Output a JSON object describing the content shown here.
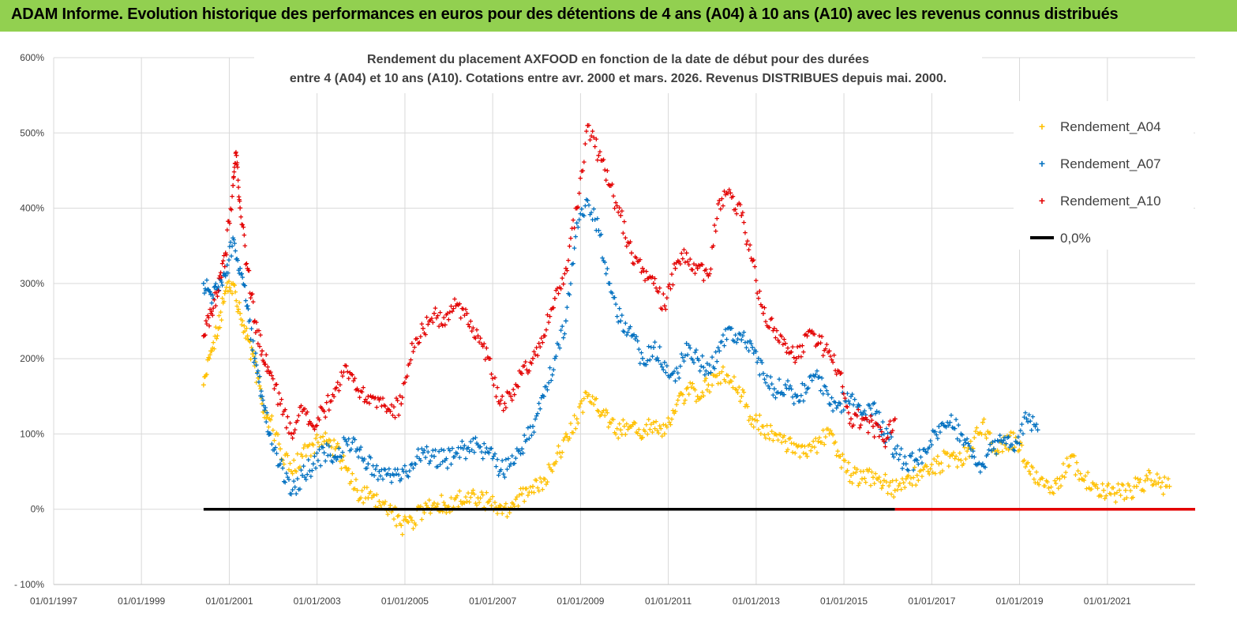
{
  "banner": {
    "text": "ADAM Informe. Evolution historique des performances en euros pour des détentions de 4 ans (A04) à 10 ans (A10) avec les revenus connus distribués",
    "background": "#92d050"
  },
  "chart_data": {
    "type": "scatter",
    "title_lines": [
      "Rendement du placement AXFOOD en fonction de la date de début pour des durées",
      "entre 4 (A04) et 10 ans (A10). Cotations entre avr. 2000 et mars. 2026. Revenus DISTRIBUES depuis mai. 2000."
    ],
    "xlabel": "",
    "ylabel": "",
    "x_tick_labels": [
      "01/01/1997",
      "01/01/1999",
      "01/01/2001",
      "01/01/2003",
      "01/01/2005",
      "01/01/2007",
      "01/01/2009",
      "01/01/2011",
      "01/01/2013",
      "01/01/2015",
      "01/01/2017",
      "01/01/2019",
      "01/01/2021"
    ],
    "x_range": [
      "01/01/1997",
      "01/01/2023"
    ],
    "y_tick_labels": [
      "- 100%",
      "0%",
      "100%",
      "200%",
      "300%",
      "400%",
      "500%",
      "600%"
    ],
    "y_range_pct": [
      -100,
      600
    ],
    "grid": true,
    "legend_position": "top-right",
    "series": [
      {
        "name": "Rendement_A04",
        "color": "#ffc000",
        "marker": "+",
        "points": [
          [
            "01/06/2000",
            165
          ],
          [
            "01/08/2000",
            210
          ],
          [
            "01/10/2000",
            240
          ],
          [
            "01/12/2000",
            290
          ],
          [
            "01/02/2001",
            300
          ],
          [
            "01/04/2001",
            260
          ],
          [
            "01/06/2001",
            230
          ],
          [
            "01/08/2001",
            190
          ],
          [
            "01/10/2001",
            140
          ],
          [
            "01/12/2001",
            120
          ],
          [
            "01/03/2002",
            80
          ],
          [
            "01/06/2002",
            50
          ],
          [
            "01/09/2002",
            70
          ],
          [
            "01/12/2002",
            85
          ],
          [
            "01/03/2003",
            90
          ],
          [
            "01/06/2003",
            80
          ],
          [
            "01/09/2003",
            55
          ],
          [
            "01/12/2003",
            25
          ],
          [
            "01/03/2004",
            15
          ],
          [
            "01/06/2004",
            10
          ],
          [
            "01/09/2004",
            5
          ],
          [
            "01/12/2004",
            -22
          ],
          [
            "01/03/2005",
            -15
          ],
          [
            "01/06/2005",
            0
          ],
          [
            "01/09/2005",
            8
          ],
          [
            "01/12/2005",
            5
          ],
          [
            "01/03/2006",
            15
          ],
          [
            "01/06/2006",
            10
          ],
          [
            "01/09/2006",
            15
          ],
          [
            "01/12/2006",
            10
          ],
          [
            "01/03/2007",
            5
          ],
          [
            "01/06/2007",
            2
          ],
          [
            "01/09/2007",
            20
          ],
          [
            "01/12/2007",
            30
          ],
          [
            "01/03/2008",
            40
          ],
          [
            "01/06/2008",
            60
          ],
          [
            "01/09/2008",
            100
          ],
          [
            "01/12/2008",
            120
          ],
          [
            "01/03/2009",
            150
          ],
          [
            "01/06/2009",
            130
          ],
          [
            "01/09/2009",
            115
          ],
          [
            "01/12/2009",
            105
          ],
          [
            "01/03/2010",
            110
          ],
          [
            "01/06/2010",
            95
          ],
          [
            "01/09/2010",
            115
          ],
          [
            "01/12/2010",
            100
          ],
          [
            "01/03/2011",
            130
          ],
          [
            "01/06/2011",
            160
          ],
          [
            "01/09/2011",
            150
          ],
          [
            "01/12/2011",
            165
          ],
          [
            "01/03/2012",
            180
          ],
          [
            "01/06/2012",
            170
          ],
          [
            "01/09/2012",
            150
          ],
          [
            "01/12/2012",
            120
          ],
          [
            "01/03/2013",
            110
          ],
          [
            "01/06/2013",
            100
          ],
          [
            "01/09/2013",
            90
          ],
          [
            "01/12/2013",
            85
          ],
          [
            "01/03/2014",
            70
          ],
          [
            "01/06/2014",
            90
          ],
          [
            "01/09/2014",
            100
          ],
          [
            "01/12/2014",
            70
          ],
          [
            "01/03/2015",
            45
          ],
          [
            "01/06/2015",
            40
          ],
          [
            "01/09/2015",
            42
          ],
          [
            "01/12/2015",
            38
          ],
          [
            "01/03/2016",
            25
          ],
          [
            "01/06/2016",
            40
          ],
          [
            "01/09/2016",
            45
          ],
          [
            "01/12/2016",
            50
          ],
          [
            "01/03/2017",
            60
          ],
          [
            "01/06/2017",
            70
          ],
          [
            "01/09/2017",
            65
          ],
          [
            "01/12/2017",
            80
          ],
          [
            "01/03/2018",
            115
          ],
          [
            "01/06/2018",
            80
          ],
          [
            "01/09/2018",
            85
          ],
          [
            "01/12/2018",
            95
          ],
          [
            "01/03/2019",
            60
          ],
          [
            "01/06/2019",
            35
          ],
          [
            "01/09/2019",
            28
          ],
          [
            "01/12/2019",
            40
          ],
          [
            "01/03/2020",
            70
          ],
          [
            "01/06/2020",
            40
          ],
          [
            "01/09/2020",
            35
          ],
          [
            "01/12/2020",
            25
          ],
          [
            "01/03/2021",
            20
          ],
          [
            "01/06/2021",
            25
          ],
          [
            "01/09/2021",
            30
          ],
          [
            "01/12/2021",
            40
          ],
          [
            "01/03/2022",
            35
          ],
          [
            "01/06/2022",
            30
          ]
        ]
      },
      {
        "name": "Rendement_A07",
        "color": "#0070c0",
        "marker": "+",
        "points": [
          [
            "01/06/2000",
            300
          ],
          [
            "01/08/2000",
            285
          ],
          [
            "01/10/2000",
            295
          ],
          [
            "01/12/2000",
            310
          ],
          [
            "01/02/2001",
            360
          ],
          [
            "01/04/2001",
            320
          ],
          [
            "01/06/2001",
            270
          ],
          [
            "01/08/2001",
            200
          ],
          [
            "01/10/2001",
            150
          ],
          [
            "01/12/2001",
            100
          ],
          [
            "01/03/2002",
            60
          ],
          [
            "01/06/2002",
            20
          ],
          [
            "01/09/2002",
            45
          ],
          [
            "01/12/2002",
            60
          ],
          [
            "01/03/2003",
            75
          ],
          [
            "01/06/2003",
            70
          ],
          [
            "01/09/2003",
            90
          ],
          [
            "01/12/2003",
            80
          ],
          [
            "01/03/2004",
            60
          ],
          [
            "01/06/2004",
            50
          ],
          [
            "01/09/2004",
            45
          ],
          [
            "01/12/2004",
            40
          ],
          [
            "01/03/2005",
            60
          ],
          [
            "01/06/2005",
            75
          ],
          [
            "01/09/2005",
            70
          ],
          [
            "01/12/2005",
            65
          ],
          [
            "01/03/2006",
            75
          ],
          [
            "01/06/2006",
            80
          ],
          [
            "01/09/2006",
            85
          ],
          [
            "01/12/2006",
            75
          ],
          [
            "01/03/2007",
            50
          ],
          [
            "01/06/2007",
            60
          ],
          [
            "01/09/2007",
            80
          ],
          [
            "01/12/2007",
            110
          ],
          [
            "01/03/2008",
            150
          ],
          [
            "01/06/2008",
            200
          ],
          [
            "01/09/2008",
            250
          ],
          [
            "01/12/2008",
            380
          ],
          [
            "01/03/2009",
            410
          ],
          [
            "01/06/2009",
            370
          ],
          [
            "01/09/2009",
            300
          ],
          [
            "01/12/2009",
            250
          ],
          [
            "01/03/2010",
            230
          ],
          [
            "01/06/2010",
            200
          ],
          [
            "01/09/2010",
            215
          ],
          [
            "01/12/2010",
            195
          ],
          [
            "01/03/2011",
            170
          ],
          [
            "01/06/2011",
            220
          ],
          [
            "01/09/2011",
            200
          ],
          [
            "01/12/2011",
            180
          ],
          [
            "01/03/2012",
            210
          ],
          [
            "01/06/2012",
            240
          ],
          [
            "01/09/2012",
            225
          ],
          [
            "01/12/2012",
            215
          ],
          [
            "01/03/2013",
            180
          ],
          [
            "01/06/2013",
            160
          ],
          [
            "01/09/2013",
            165
          ],
          [
            "01/12/2013",
            150
          ],
          [
            "01/03/2014",
            160
          ],
          [
            "01/06/2014",
            175
          ],
          [
            "01/09/2014",
            140
          ],
          [
            "01/12/2014",
            140
          ],
          [
            "01/03/2015",
            150
          ],
          [
            "01/06/2015",
            125
          ],
          [
            "01/09/2015",
            140
          ],
          [
            "01/12/2015",
            100
          ],
          [
            "01/03/2016",
            80
          ],
          [
            "01/06/2016",
            60
          ],
          [
            "01/09/2016",
            65
          ],
          [
            "01/12/2016",
            80
          ],
          [
            "01/03/2017",
            110
          ],
          [
            "01/06/2017",
            115
          ],
          [
            "01/09/2017",
            100
          ],
          [
            "01/12/2017",
            70
          ],
          [
            "01/03/2018",
            60
          ],
          [
            "01/06/2018",
            80
          ],
          [
            "01/09/2018",
            95
          ],
          [
            "01/12/2018",
            90
          ],
          [
            "01/03/2019",
            120
          ],
          [
            "01/06/2019",
            105
          ]
        ]
      },
      {
        "name": "Rendement_A10",
        "color": "#e30000",
        "marker": "+",
        "points": [
          [
            "01/06/2000",
            230
          ],
          [
            "01/08/2000",
            260
          ],
          [
            "01/10/2000",
            290
          ],
          [
            "01/12/2000",
            340
          ],
          [
            "01/02/2001",
            430
          ],
          [
            "01/03/2001",
            470
          ],
          [
            "01/04/2001",
            400
          ],
          [
            "01/06/2001",
            320
          ],
          [
            "01/08/2001",
            250
          ],
          [
            "01/10/2001",
            210
          ],
          [
            "01/12/2001",
            180
          ],
          [
            "01/03/2002",
            140
          ],
          [
            "01/06/2002",
            100
          ],
          [
            "01/09/2002",
            130
          ],
          [
            "01/12/2002",
            110
          ],
          [
            "01/03/2003",
            130
          ],
          [
            "01/06/2003",
            160
          ],
          [
            "01/09/2003",
            190
          ],
          [
            "01/12/2003",
            160
          ],
          [
            "01/03/2004",
            150
          ],
          [
            "01/06/2004",
            145
          ],
          [
            "01/09/2004",
            130
          ],
          [
            "01/12/2004",
            140
          ],
          [
            "01/03/2005",
            220
          ],
          [
            "01/06/2005",
            240
          ],
          [
            "01/09/2005",
            260
          ],
          [
            "01/12/2005",
            245
          ],
          [
            "01/03/2006",
            270
          ],
          [
            "01/06/2006",
            260
          ],
          [
            "01/09/2006",
            230
          ],
          [
            "01/12/2006",
            200
          ],
          [
            "01/03/2007",
            140
          ],
          [
            "01/06/2007",
            150
          ],
          [
            "01/09/2007",
            180
          ],
          [
            "01/12/2007",
            200
          ],
          [
            "01/03/2008",
            230
          ],
          [
            "01/06/2008",
            280
          ],
          [
            "01/09/2008",
            320
          ],
          [
            "01/12/2008",
            400
          ],
          [
            "01/03/2009",
            510
          ],
          [
            "01/06/2009",
            470
          ],
          [
            "01/09/2009",
            430
          ],
          [
            "01/12/2009",
            390
          ],
          [
            "01/03/2010",
            340
          ],
          [
            "01/06/2010",
            320
          ],
          [
            "01/09/2010",
            300
          ],
          [
            "01/12/2010",
            270
          ],
          [
            "01/03/2011",
            320
          ],
          [
            "01/06/2011",
            340
          ],
          [
            "01/09/2011",
            320
          ],
          [
            "01/12/2011",
            310
          ],
          [
            "01/03/2012",
            410
          ],
          [
            "01/06/2012",
            420
          ],
          [
            "01/09/2012",
            390
          ],
          [
            "01/12/2012",
            330
          ],
          [
            "01/03/2013",
            260
          ],
          [
            "01/06/2013",
            240
          ],
          [
            "01/09/2013",
            220
          ],
          [
            "01/12/2013",
            200
          ],
          [
            "01/03/2014",
            230
          ],
          [
            "01/06/2014",
            220
          ],
          [
            "01/09/2014",
            210
          ],
          [
            "01/12/2014",
            180
          ],
          [
            "01/03/2015",
            120
          ],
          [
            "01/06/2015",
            120
          ],
          [
            "01/09/2015",
            110
          ],
          [
            "01/12/2015",
            90
          ],
          [
            "01/03/2016",
            120
          ]
        ]
      },
      {
        "name": "0,0%",
        "color": "#000000",
        "marker": "line",
        "points": [
          [
            "01/06/2000",
            0
          ],
          [
            "01/03/2016",
            0
          ]
        ]
      },
      {
        "name": "",
        "color": "#e30000",
        "marker": "line",
        "points": [
          [
            "01/03/2016",
            0
          ],
          [
            "01/01/2023",
            0
          ]
        ]
      }
    ]
  }
}
